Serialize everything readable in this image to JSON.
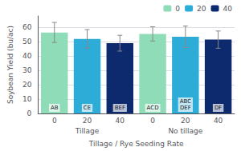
{
  "chart_data": {
    "type": "bar",
    "xlabel": "Tillage / Rye Seeding Rate",
    "ylabel": "Soybean Yield (bu/ac)",
    "categories": [
      "0",
      "20",
      "40",
      "0",
      "20",
      "40"
    ],
    "group_labels": [
      "Tillage",
      "No tillage"
    ],
    "series": [
      {
        "name": "0",
        "color": "#8edcb8",
        "values": [
          56.5,
          null,
          null,
          55.5,
          null,
          null
        ],
        "errors": [
          7.0,
          null,
          null,
          5.0,
          null,
          null
        ],
        "annotations": [
          "AB",
          null,
          null,
          "ACD",
          null,
          null
        ]
      },
      {
        "name": "20",
        "color": "#2dacd8",
        "values": [
          null,
          52.0,
          null,
          null,
          53.5,
          null
        ],
        "errors": [
          null,
          6.5,
          null,
          null,
          7.5,
          null
        ],
        "annotations": [
          null,
          "CE",
          null,
          null,
          "ABC\nDEF",
          null
        ]
      },
      {
        "name": "40",
        "color": "#0d2a6e",
        "values": [
          null,
          null,
          49.0,
          null,
          null,
          51.5
        ],
        "errors": [
          null,
          null,
          5.5,
          null,
          null,
          6.0
        ],
        "annotations": [
          null,
          null,
          "BEF",
          null,
          null,
          "DF"
        ]
      }
    ],
    "ylim": [
      0,
      68
    ],
    "yticks": [
      0,
      10,
      20,
      30,
      40,
      50,
      60
    ],
    "grid": true,
    "legend": "upper right"
  }
}
